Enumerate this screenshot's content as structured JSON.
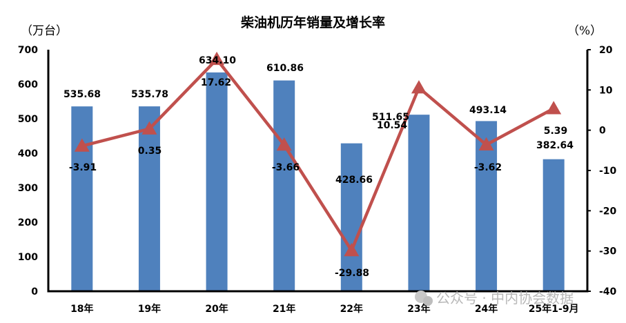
{
  "chart_data": {
    "type": "bar+line",
    "title": "柴油机历年销量及增长率",
    "categories": [
      "18年",
      "19年",
      "20年",
      "21年",
      "22年",
      "23年",
      "24年",
      "25年1-9月"
    ],
    "series": [
      {
        "name": "销量",
        "type": "bar",
        "axis": "left",
        "unit": "万台",
        "color": "#4F81BD",
        "values": [
          535.68,
          535.78,
          634.1,
          610.86,
          428.66,
          511.65,
          493.14,
          382.64
        ],
        "labels": [
          "535.68",
          "535.78",
          "634.10",
          "610.86",
          "428.66",
          "511.65",
          "493.14",
          "382.64"
        ]
      },
      {
        "name": "增长率",
        "type": "line",
        "axis": "right",
        "unit": "%",
        "color": "#C0504D",
        "marker": "triangle",
        "values": [
          -3.91,
          0.35,
          17.62,
          -3.66,
          -29.88,
          10.54,
          -3.62,
          5.39
        ],
        "labels": [
          "-3.91",
          "0.35",
          "17.62",
          "-3.66",
          "-29.88",
          "10.54",
          "-3.62",
          "5.39"
        ]
      }
    ],
    "y_left": {
      "label": "（万台）",
      "ylim": [
        0,
        700
      ],
      "ticks": [
        "0",
        "100",
        "200",
        "300",
        "400",
        "500",
        "600",
        "700"
      ]
    },
    "y_right": {
      "label": "（%）",
      "ylim": [
        -40,
        20
      ],
      "ticks": [
        "20",
        "10",
        "0",
        "-10",
        "-20",
        "-30",
        "-40"
      ]
    },
    "grid": false,
    "legend": "none"
  },
  "header": {
    "title": "柴油机历年销量及增长率",
    "left_unit": "（万台）",
    "right_unit": "（%）"
  },
  "watermark": "公众号 · 中内协会数据"
}
